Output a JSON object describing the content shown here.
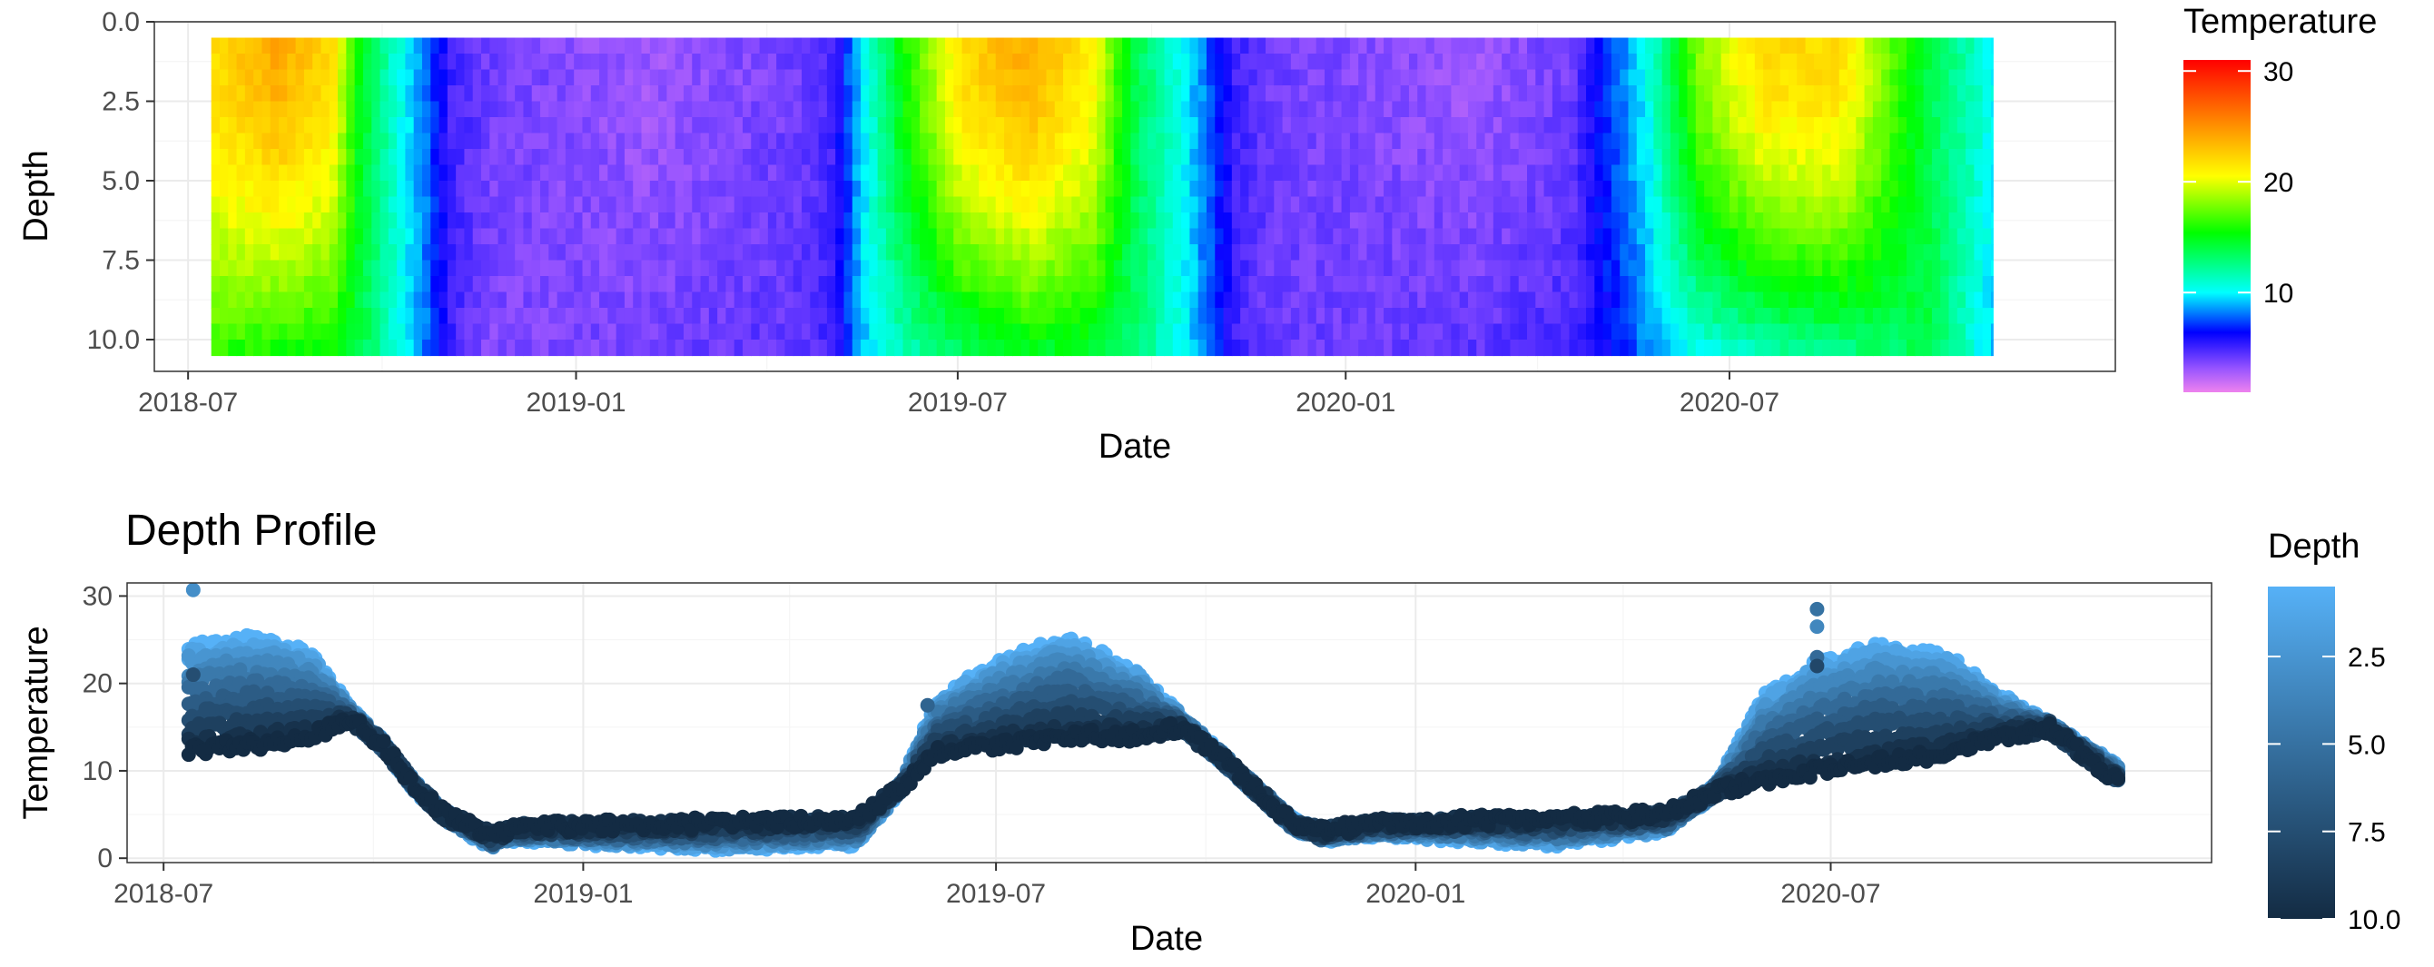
{
  "colors": {
    "panel_border": "#333333",
    "grid_major": "#ebebeb",
    "grid_minor": "#f5f5f5",
    "tick_text": "#4d4d4d",
    "temperature_gradient": [
      "#ee82ee",
      "#9955ff",
      "#0000ff",
      "#00ffff",
      "#00ff00",
      "#ffff00",
      "#ff0000"
    ],
    "depth_gradient": [
      "#56b1f7",
      "#132b43"
    ]
  },
  "chart_data": [
    {
      "type": "heatmap",
      "title": "",
      "xlabel": "Date",
      "ylabel": "Depth",
      "x_ticks": [
        "2018-07",
        "2019-01",
        "2019-07",
        "2020-01",
        "2020-07"
      ],
      "y_ticks": [
        "0.0",
        "2.5",
        "5.0",
        "7.5",
        "10.0"
      ],
      "y_reversed": true,
      "xlim": [
        "2018-06-15",
        "2020-12-31"
      ],
      "ylim": [
        0,
        11
      ],
      "date_range": [
        "2018-07-12",
        "2020-11-03"
      ],
      "depth_range": [
        0.5,
        10.5
      ],
      "legend": {
        "title": "Temperature",
        "position": "right",
        "scale": "rainbow",
        "labels": [
          "10",
          "20",
          "30"
        ],
        "breaks": [
          10,
          20,
          30
        ],
        "limits": [
          1,
          31
        ]
      },
      "temperature_profile_knots": [
        [
          "2018-07-12",
          22,
          16
        ],
        [
          "2018-08-10",
          24,
          15
        ],
        [
          "2018-09-05",
          22,
          15
        ],
        [
          "2018-09-18",
          15,
          14
        ],
        [
          "2018-10-05",
          11,
          11
        ],
        [
          "2018-10-20",
          8,
          8
        ],
        [
          "2018-11-01",
          5,
          5
        ],
        [
          "2018-11-20",
          4,
          3.5
        ],
        [
          "2019-02-01",
          3,
          4
        ],
        [
          "2019-04-15",
          4,
          4.5
        ],
        [
          "2019-05-01",
          5,
          5
        ],
        [
          "2019-05-15",
          10,
          9
        ],
        [
          "2019-06-01",
          15,
          11
        ],
        [
          "2019-07-01",
          22,
          13
        ],
        [
          "2019-08-01",
          24,
          14
        ],
        [
          "2019-09-01",
          21,
          14
        ],
        [
          "2019-09-20",
          14,
          13
        ],
        [
          "2019-10-15",
          10,
          10
        ],
        [
          "2019-11-08",
          5,
          5
        ],
        [
          "2019-11-25",
          4,
          4
        ],
        [
          "2020-03-01",
          3,
          4.5
        ],
        [
          "2020-04-15",
          4,
          5
        ],
        [
          "2020-05-01",
          7,
          6
        ],
        [
          "2020-05-20",
          10,
          8
        ],
        [
          "2020-06-15",
          18,
          10
        ],
        [
          "2020-07-15",
          22,
          11
        ],
        [
          "2020-08-20",
          22,
          12
        ],
        [
          "2020-09-15",
          17,
          13
        ],
        [
          "2020-10-01",
          14,
          14
        ],
        [
          "2020-11-03",
          10,
          9
        ]
      ]
    },
    {
      "type": "scatter",
      "title": "Depth Profile",
      "xlabel": "Date",
      "ylabel": "Temperature",
      "x_ticks": [
        "2018-07",
        "2019-01",
        "2019-07",
        "2020-01",
        "2020-07"
      ],
      "y_ticks": [
        "0",
        "10",
        "20",
        "30"
      ],
      "xlim": [
        "2018-06-15",
        "2020-12-15"
      ],
      "ylim": [
        -0.5,
        31.5
      ],
      "legend": {
        "title": "Depth",
        "position": "right",
        "scale": "continuous blue",
        "labels": [
          "2.5",
          "5.0",
          "7.5",
          "10.0"
        ],
        "breaks": [
          2.5,
          5,
          7.5,
          10
        ],
        "limits": [
          0.5,
          10
        ]
      },
      "depths": [
        0.5,
        1.5,
        2.5,
        3.5,
        4.5,
        5.5,
        6.5,
        7.5,
        8.5,
        9.5,
        10
      ],
      "date_range": [
        "2018-07-12",
        "2020-11-05"
      ],
      "temperature_profile_knots": [
        [
          "2018-07-12",
          24,
          12.5
        ],
        [
          "2018-08-10",
          25,
          13
        ],
        [
          "2018-09-05",
          23,
          14
        ],
        [
          "2018-09-20",
          17,
          16
        ],
        [
          "2018-10-05",
          13,
          13
        ],
        [
          "2018-10-20",
          8,
          8
        ],
        [
          "2018-11-01",
          5,
          5
        ],
        [
          "2018-11-22",
          1.5,
          2.5
        ],
        [
          "2018-12-01",
          2.5,
          3.5
        ],
        [
          "2019-03-01",
          1.5,
          4
        ],
        [
          "2019-05-01",
          2,
          4.5
        ],
        [
          "2019-05-20",
          8,
          8
        ],
        [
          "2019-06-05",
          18,
          12
        ],
        [
          "2019-07-01",
          22,
          13
        ],
        [
          "2019-08-01",
          25,
          14
        ],
        [
          "2019-09-01",
          21,
          14
        ],
        [
          "2019-09-20",
          16,
          15
        ],
        [
          "2019-10-10",
          11,
          11
        ],
        [
          "2019-11-08",
          4,
          4
        ],
        [
          "2019-11-20",
          2.5,
          3
        ],
        [
          "2019-12-15",
          3,
          4
        ],
        [
          "2020-03-01",
          2,
          4.5
        ],
        [
          "2020-04-20",
          3.5,
          5
        ],
        [
          "2020-05-10",
          7.5,
          7.5
        ],
        [
          "2020-06-01",
          18,
          9
        ],
        [
          "2020-06-25",
          22,
          10
        ],
        [
          "2020-07-20",
          24,
          11
        ],
        [
          "2020-08-20",
          23,
          12
        ],
        [
          "2020-09-15",
          18,
          14
        ],
        [
          "2020-10-05",
          15,
          15
        ],
        [
          "2020-11-05",
          10,
          8.5
        ]
      ],
      "outliers": [
        {
          "date": "2018-07-14",
          "temperature": 30.7,
          "depth": 3.0
        },
        {
          "date": "2018-07-14",
          "temperature": 21.0,
          "depth": 7.5
        },
        {
          "date": "2019-06-01",
          "temperature": 17.5,
          "depth": 6.0
        },
        {
          "date": "2020-06-25",
          "temperature": 28.5,
          "depth": 5.0
        },
        {
          "date": "2020-06-25",
          "temperature": 26.5,
          "depth": 3.5
        },
        {
          "date": "2020-06-25",
          "temperature": 23.0,
          "depth": 5.5
        },
        {
          "date": "2020-06-25",
          "temperature": 22.0,
          "depth": 8.0
        }
      ]
    }
  ]
}
